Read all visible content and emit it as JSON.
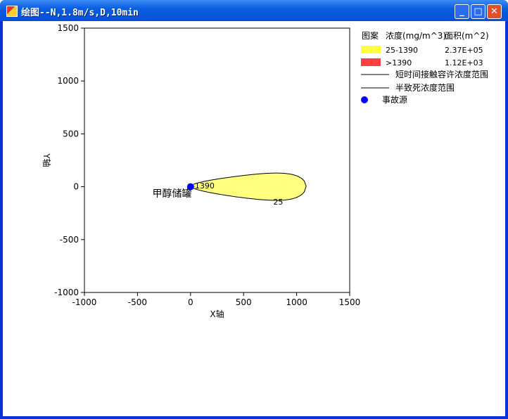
{
  "window": {
    "title": "绘图--N,1.8m/s,D,10min"
  },
  "chart_data": {
    "type": "contour",
    "xlabel": "X轴",
    "ylabel": "Y轴",
    "xlim": [
      -1000,
      1500
    ],
    "ylim": [
      -1000,
      1500
    ],
    "xticks": [
      "-1000",
      "-500",
      "0",
      "500",
      "1000",
      "1500"
    ],
    "yticks": [
      "-1000",
      "-500",
      "0",
      "500",
      "1000",
      "1500"
    ],
    "source": {
      "x": 0,
      "y": 0,
      "label": "甲醇储罐",
      "color": "#0000ff"
    },
    "contours": [
      {
        "label": "25",
        "range": "25-1390",
        "area": "2.37E+05",
        "color": "#ffff80",
        "extent_x": [
          0,
          1090
        ],
        "max_half_width": 155
      },
      {
        "label": "1390",
        "range": ">1390",
        "area": "1.12E+03",
        "color": "#ff4040",
        "extent_x": [
          0,
          40
        ],
        "max_half_width": 5
      }
    ],
    "legend": {
      "headers": [
        "图案",
        "浓度(mg/m^3)",
        "面积(m^2)"
      ],
      "rows": [
        {
          "pattern": "#ffff40",
          "conc": "25-1390",
          "area": "2.37E+05"
        },
        {
          "pattern": "#ff4040",
          "conc": ">1390",
          "area": "1.12E+03"
        }
      ],
      "lines": [
        "短时间接触容许浓度范围",
        "半致死浓度范围"
      ],
      "source_label": "事故源"
    }
  }
}
